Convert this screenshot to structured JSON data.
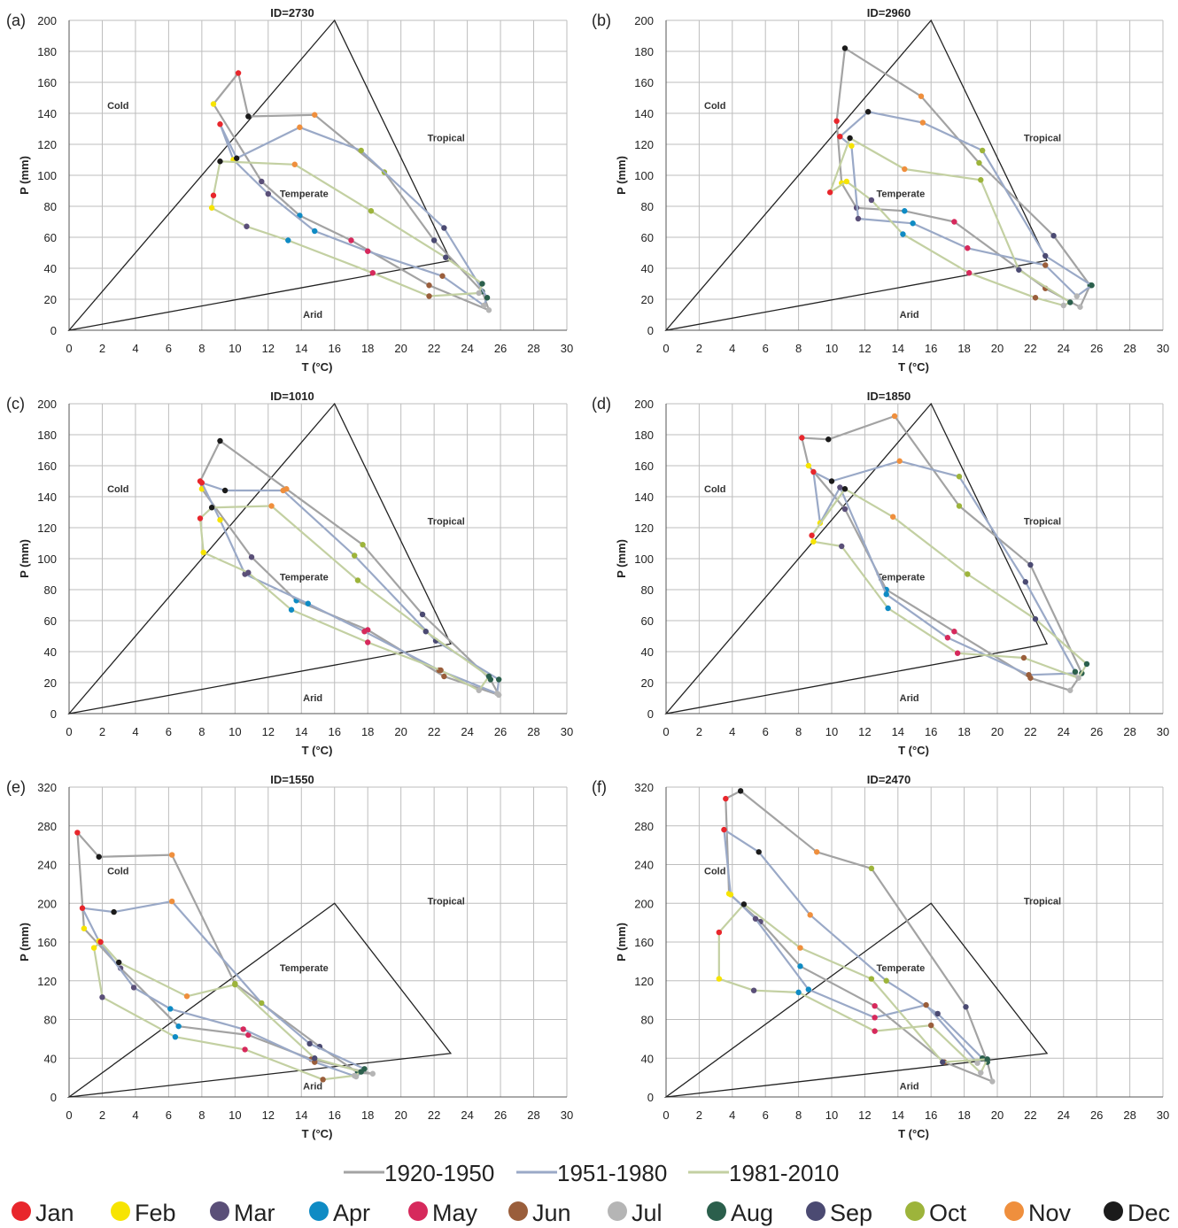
{
  "period_legend": [
    {
      "label": "1920-1950",
      "color": "#a3a3a3"
    },
    {
      "label": "1951-1980",
      "color": "#9aa9c7"
    },
    {
      "label": "1981-2010",
      "color": "#c3d0a2"
    }
  ],
  "month_legend": [
    {
      "label": "Jan",
      "color": "#e8262c"
    },
    {
      "label": "Feb",
      "color": "#f7e400"
    },
    {
      "label": "Mar",
      "color": "#5a4f78"
    },
    {
      "label": "Apr",
      "color": "#0f8bc4"
    },
    {
      "label": "May",
      "color": "#d6295c"
    },
    {
      "label": "Jun",
      "color": "#9a5e3b"
    },
    {
      "label": "Jul",
      "color": "#b5b5b5"
    },
    {
      "label": "Aug",
      "color": "#2b5f4c"
    },
    {
      "label": "Sep",
      "color": "#4b4a72"
    },
    {
      "label": "Oct",
      "color": "#9db43b"
    },
    {
      "label": "Nov",
      "color": "#ef8f3d"
    },
    {
      "label": "Dec",
      "color": "#1b1b1b"
    }
  ],
  "chart_data": [
    {
      "panel": "(a)",
      "title": "ID=2730",
      "type": "line",
      "xlabel": "T (°C)",
      "ylabel": "P (mm)",
      "xlim": [
        0,
        30
      ],
      "ylim": [
        0,
        200
      ],
      "xticks": [
        "0",
        "2",
        "4",
        "6",
        "8",
        "10",
        "12",
        "14",
        "16",
        "18",
        "20",
        "22",
        "24",
        "26",
        "28",
        "30"
      ],
      "yticks": [
        "0",
        "20",
        "40",
        "60",
        "80",
        "100",
        "120",
        "140",
        "160",
        "180",
        "200"
      ],
      "zones": {
        "cold": "Cold",
        "tropical": "Tropical",
        "temperate": "Temperate",
        "arid": "Arid"
      },
      "series": [
        {
          "name": "1920-1950",
          "x": [
            10.2,
            8.7,
            11.6,
            13.9,
            17.0,
            21.7,
            25.3,
            24.9,
            22.0,
            19.0,
            14.8,
            10.8
          ],
          "y": [
            166,
            146,
            96,
            74,
            58,
            29,
            13,
            25,
            58,
            102,
            139,
            138
          ]
        },
        {
          "name": "1951-1980",
          "x": [
            9.1,
            9.9,
            12.0,
            14.8,
            18.0,
            22.5,
            25.0,
            25.2,
            22.6,
            17.6,
            13.9,
            10.1
          ],
          "y": [
            133,
            110,
            88,
            64,
            51,
            35,
            16,
            21,
            66,
            116,
            131,
            111
          ]
        },
        {
          "name": "1981-2010",
          "x": [
            8.7,
            8.6,
            10.7,
            13.2,
            18.3,
            21.7,
            24.7,
            24.9,
            22.7,
            18.2,
            13.6,
            9.1
          ],
          "y": [
            87,
            79,
            67,
            58,
            37,
            22,
            24,
            30,
            47,
            77,
            107,
            109
          ]
        }
      ]
    },
    {
      "panel": "(b)",
      "title": "ID=2960",
      "type": "line",
      "xlabel": "T (°C)",
      "ylabel": "P (mm)",
      "xlim": [
        0,
        30
      ],
      "ylim": [
        0,
        200
      ],
      "xticks": [
        "0",
        "2",
        "4",
        "6",
        "8",
        "10",
        "12",
        "14",
        "16",
        "18",
        "20",
        "22",
        "24",
        "26",
        "28",
        "30"
      ],
      "yticks": [
        "0",
        "20",
        "40",
        "60",
        "80",
        "100",
        "120",
        "140",
        "160",
        "180",
        "200"
      ],
      "zones": {
        "cold": "Cold",
        "tropical": "Tropical",
        "temperate": "Temperate",
        "arid": "Arid"
      },
      "series": [
        {
          "name": "1920-1950",
          "x": [
            10.3,
            10.6,
            11.5,
            14.4,
            17.4,
            22.9,
            25.0,
            25.6,
            23.4,
            18.9,
            15.4,
            10.8
          ],
          "y": [
            135,
            95,
            79,
            77,
            70,
            27,
            15,
            29,
            61,
            108,
            151,
            182
          ]
        },
        {
          "name": "1951-1980",
          "x": [
            10.5,
            11.2,
            11.6,
            14.9,
            18.2,
            22.9,
            24.8,
            25.7,
            22.9,
            19.1,
            15.5,
            12.2
          ],
          "y": [
            125,
            119,
            72,
            69,
            53,
            42,
            22,
            29,
            48,
            116,
            134,
            141
          ]
        },
        {
          "name": "1981-2010",
          "x": [
            9.9,
            10.9,
            12.4,
            14.3,
            18.3,
            22.3,
            24.0,
            24.4,
            21.3,
            19.0,
            14.4,
            11.1
          ],
          "y": [
            89,
            96,
            84,
            62,
            37,
            21,
            16,
            18,
            39,
            97,
            104,
            124
          ]
        }
      ]
    },
    {
      "panel": "(c)",
      "title": "ID=1010",
      "type": "line",
      "xlabel": "T (°C)",
      "ylabel": "P (mm)",
      "xlim": [
        0,
        30
      ],
      "ylim": [
        0,
        200
      ],
      "xticks": [
        "0",
        "2",
        "4",
        "6",
        "8",
        "10",
        "12",
        "14",
        "16",
        "18",
        "20",
        "22",
        "24",
        "26",
        "28",
        "30"
      ],
      "yticks": [
        "0",
        "20",
        "40",
        "60",
        "80",
        "100",
        "120",
        "140",
        "160",
        "180",
        "200"
      ],
      "zones": {
        "cold": "Cold",
        "tropical": "Tropical",
        "temperate": "Temperate",
        "arid": "Arid"
      },
      "series": [
        {
          "name": "1920-1950",
          "x": [
            7.9,
            8.0,
            11.0,
            13.7,
            18.0,
            22.6,
            25.9,
            25.4,
            21.3,
            17.7,
            13.1,
            9.1
          ],
          "y": [
            150,
            145,
            101,
            73,
            54,
            24,
            12,
            22,
            64,
            109,
            145,
            176
          ]
        },
        {
          "name": "1951-1980",
          "x": [
            8.0,
            9.1,
            10.6,
            14.4,
            17.8,
            22.3,
            25.8,
            25.9,
            22.1,
            17.2,
            12.9,
            9.4
          ],
          "y": [
            149,
            125,
            90,
            71,
            53,
            28,
            13,
            22,
            47,
            102,
            144,
            144
          ]
        },
        {
          "name": "1981-2010",
          "x": [
            7.9,
            8.1,
            10.8,
            13.4,
            18.0,
            22.4,
            24.7,
            25.3,
            21.5,
            17.4,
            12.2,
            8.6
          ],
          "y": [
            126,
            104,
            91,
            67,
            46,
            28,
            15,
            24,
            53,
            86,
            134,
            133
          ]
        }
      ]
    },
    {
      "panel": "(d)",
      "title": "ID=1850",
      "type": "line",
      "xlabel": "T (°C)",
      "ylabel": "P (mm)",
      "xlim": [
        0,
        30
      ],
      "ylim": [
        0,
        200
      ],
      "xticks": [
        "0",
        "2",
        "4",
        "6",
        "8",
        "10",
        "12",
        "14",
        "16",
        "18",
        "20",
        "22",
        "24",
        "26",
        "28",
        "30"
      ],
      "yticks": [
        "0",
        "20",
        "40",
        "60",
        "80",
        "100",
        "120",
        "140",
        "160",
        "180",
        "200"
      ],
      "zones": {
        "cold": "Cold",
        "tropical": "Tropical",
        "temperate": "Temperate",
        "arid": "Arid"
      },
      "series": [
        {
          "name": "1920-1950",
          "x": [
            8.2,
            8.6,
            10.8,
            13.3,
            17.4,
            22.0,
            24.4,
            25.1,
            22.0,
            17.7,
            13.8,
            9.8
          ],
          "y": [
            178,
            160,
            132,
            80,
            53,
            23,
            15,
            26,
            96,
            134,
            192,
            177
          ]
        },
        {
          "name": "1951-1980",
          "x": [
            8.9,
            9.3,
            10.5,
            13.3,
            17.0,
            21.9,
            24.7,
            24.7,
            21.7,
            17.7,
            14.1,
            10.0
          ],
          "y": [
            156,
            123,
            146,
            77,
            49,
            25,
            26,
            27,
            85,
            153,
            163,
            150
          ]
        },
        {
          "name": "1981-2010",
          "x": [
            8.8,
            8.9,
            10.6,
            13.4,
            17.6,
            21.6,
            24.9,
            25.4,
            22.3,
            18.2,
            13.7,
            10.8
          ],
          "y": [
            115,
            111,
            108,
            68,
            39,
            36,
            23,
            32,
            61,
            90,
            127,
            145
          ]
        }
      ]
    },
    {
      "panel": "(e)",
      "title": "ID=1550",
      "type": "line",
      "xlabel": "T (°C)",
      "ylabel": "P (mm)",
      "xlim": [
        0,
        30
      ],
      "ylim": [
        0,
        320
      ],
      "xticks": [
        "0",
        "2",
        "4",
        "6",
        "8",
        "10",
        "12",
        "14",
        "16",
        "18",
        "20",
        "22",
        "24",
        "26",
        "28",
        "30"
      ],
      "yticks": [
        "0",
        "40",
        "80",
        "120",
        "160",
        "200",
        "240",
        "280",
        "320"
      ],
      "zones": {
        "cold": "Cold",
        "tropical": "Tropical",
        "temperate": "Temperate",
        "arid": "Arid"
      },
      "series": [
        {
          "name": "1920-1950",
          "x": [
            0.5,
            0.9,
            3.1,
            6.6,
            10.8,
            14.6,
            18.3,
            17.4,
            15.1,
            10.0,
            6.2,
            1.8
          ],
          "y": [
            273,
            174,
            133,
            73,
            64,
            39,
            24,
            25,
            52,
            117,
            250,
            248
          ]
        },
        {
          "name": "1951-1980",
          "x": [
            0.8,
            1.8,
            3.9,
            6.1,
            10.5,
            14.8,
            17.3,
            17.8,
            14.5,
            11.6,
            6.2,
            2.7
          ],
          "y": [
            195,
            161,
            113,
            91,
            70,
            36,
            21,
            29,
            55,
            97,
            202,
            191
          ]
        },
        {
          "name": "1981-2010",
          "x": [
            1.9,
            1.5,
            2.0,
            6.4,
            10.6,
            15.3,
            17.2,
            17.6,
            14.8,
            10.0,
            7.1,
            3.0
          ],
          "y": [
            160,
            154,
            103,
            62,
            49,
            18,
            22,
            26,
            40,
            116,
            104,
            139
          ]
        }
      ]
    },
    {
      "panel": "(f)",
      "title": "ID=2470",
      "type": "line",
      "xlabel": "T (°C)",
      "ylabel": "P (mm)",
      "xlim": [
        0,
        30
      ],
      "ylim": [
        0,
        320
      ],
      "xticks": [
        "0",
        "2",
        "4",
        "6",
        "8",
        "10",
        "12",
        "14",
        "16",
        "18",
        "20",
        "22",
        "24",
        "26",
        "28",
        "30"
      ],
      "yticks": [
        "0",
        "40",
        "80",
        "120",
        "160",
        "200",
        "240",
        "280",
        "320"
      ],
      "zones": {
        "cold": "Cold",
        "tropical": "Tropical",
        "temperate": "Temperate",
        "arid": "Arid"
      },
      "series": [
        {
          "name": "1920-1950",
          "x": [
            3.6,
            3.8,
            5.7,
            8.1,
            12.6,
            16.8,
            19.7,
            19.4,
            18.1,
            12.4,
            9.1,
            4.5
          ],
          "y": [
            308,
            210,
            181,
            135,
            94,
            36,
            16,
            36,
            93,
            236,
            253,
            316
          ]
        },
        {
          "name": "1951-1980",
          "x": [
            3.5,
            3.9,
            5.4,
            8.6,
            12.6,
            15.7,
            18.8,
            19.1,
            16.4,
            13.3,
            8.7,
            5.6
          ],
          "y": [
            276,
            209,
            184,
            111,
            82,
            95,
            35,
            40,
            86,
            120,
            188,
            253
          ]
        },
        {
          "name": "1981-2010",
          "x": [
            3.2,
            3.2,
            5.3,
            8.0,
            12.6,
            16.0,
            19.0,
            19.4,
            16.7,
            12.4,
            8.1,
            4.7
          ],
          "y": [
            170,
            122,
            110,
            108,
            68,
            74,
            25,
            39,
            36,
            122,
            154,
            199
          ]
        }
      ]
    }
  ]
}
